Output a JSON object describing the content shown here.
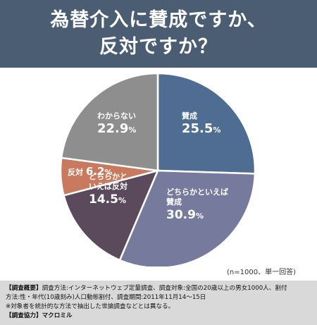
{
  "header": {
    "title_line1": "為替介入に賛成ですか、",
    "title_line2": "反対ですか？"
  },
  "chart_data": {
    "type": "pie",
    "title": "為替介入に賛成ですか、反対ですか？",
    "slices": [
      {
        "label": [
          "賛成"
        ],
        "value": 25.5,
        "value_text": "25.5",
        "unit": "%",
        "color": "#4f6d93"
      },
      {
        "label": [
          "どちらかといえば",
          "賛成"
        ],
        "value": 30.9,
        "value_text": "30.9",
        "unit": "%",
        "color": "#767b9e"
      },
      {
        "label": [
          "どちらかと",
          "いえば反対"
        ],
        "value": 14.5,
        "value_text": "14.5",
        "unit": "%",
        "color": "#5a4a5c"
      },
      {
        "label": [
          "反対"
        ],
        "value": 6.2,
        "value_text": "6.2",
        "unit": "%",
        "color": "#c97a5e"
      },
      {
        "label": [
          "わからない"
        ],
        "value": 22.9,
        "value_text": "22.9",
        "unit": "%",
        "color": "#8e8e8e"
      }
    ],
    "start_angle_deg": 0,
    "direction": "clockwise"
  },
  "note": "(n=1000、単一回答)",
  "footer": {
    "line1_head": "【調査概要】",
    "line1": "調査方法:インターネットウェブ定量調査、調査対象:全国の20歳以上の男女1000人、割付",
    "line2": "方法:性・年代(10歳刻み)人口動態割付、調査期間:2011年11月14～15日",
    "line3": "※対象者を統計的な方法で抽出した世論調査などとは異なる。",
    "line4_head": "【調査協力】",
    "line4": "マクロミル"
  }
}
